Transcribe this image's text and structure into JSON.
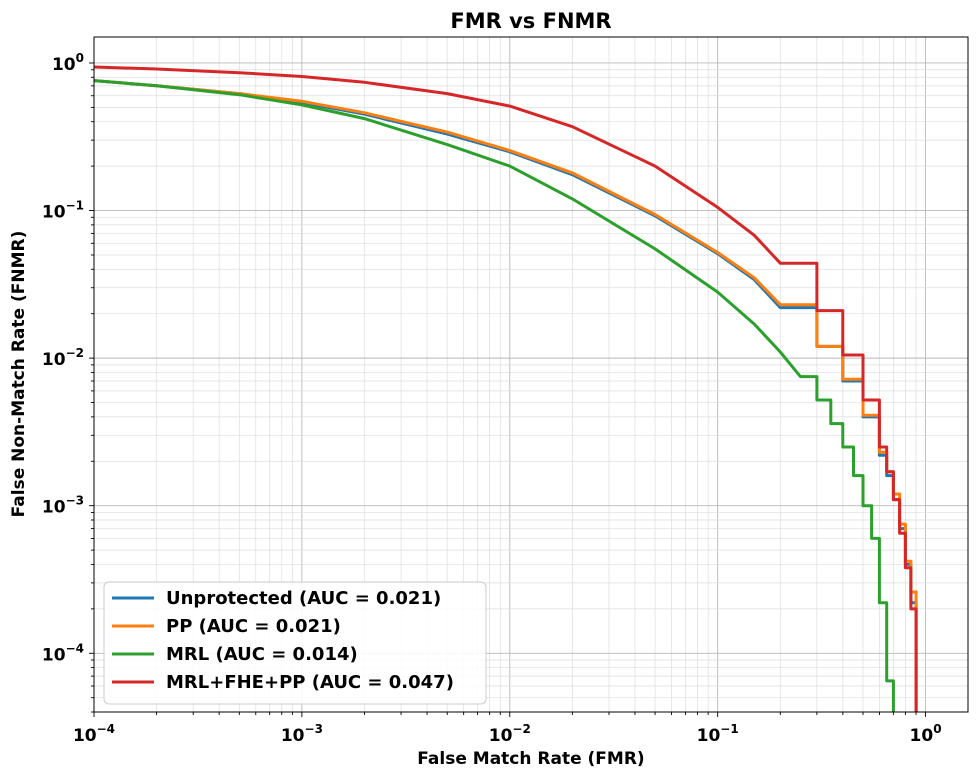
{
  "chart_data": {
    "type": "line",
    "title": "FMR vs FNMR",
    "xlabel": "False Match Rate (FMR)",
    "ylabel": "False Non-Match Rate (FNMR)",
    "xscale": "log",
    "yscale": "log",
    "xlim": [
      0.0001,
      1.6
    ],
    "ylim": [
      4e-05,
      1.5
    ],
    "grid": true,
    "legend_position": "lower-left",
    "x_ticks": [
      {
        "value": 0.0001,
        "base": "10",
        "exp": "−4"
      },
      {
        "value": 0.001,
        "base": "10",
        "exp": "−3"
      },
      {
        "value": 0.01,
        "base": "10",
        "exp": "−2"
      },
      {
        "value": 0.1,
        "base": "10",
        "exp": "−1"
      },
      {
        "value": 1,
        "base": "10",
        "exp": "0"
      }
    ],
    "y_ticks": [
      {
        "value": 0.0001,
        "base": "10",
        "exp": "−4"
      },
      {
        "value": 0.001,
        "base": "10",
        "exp": "−3"
      },
      {
        "value": 0.01,
        "base": "10",
        "exp": "−2"
      },
      {
        "value": 0.1,
        "base": "10",
        "exp": "−1"
      },
      {
        "value": 1,
        "base": "10",
        "exp": "0"
      }
    ],
    "series": [
      {
        "name": "Unprotected (AUC = 0.021)",
        "color": "#1f77b4",
        "x": [
          0.0001,
          0.0002,
          0.0005,
          0.001,
          0.002,
          0.005,
          0.01,
          0.02,
          0.05,
          0.1,
          0.15,
          0.2,
          0.3,
          0.4,
          0.5,
          0.6,
          0.65,
          0.7,
          0.75,
          0.8,
          0.85,
          0.9
        ],
        "y": [
          0.76,
          0.7,
          0.62,
          0.54,
          0.45,
          0.33,
          0.25,
          0.175,
          0.092,
          0.051,
          0.034,
          0.022,
          0.012,
          0.007,
          0.004,
          0.0022,
          0.0016,
          0.0011,
          0.0007,
          0.0004,
          0.00022,
          4e-05
        ]
      },
      {
        "name": "PP (AUC = 0.021)",
        "color": "#ff7f0e",
        "x": [
          0.0001,
          0.0002,
          0.0005,
          0.001,
          0.002,
          0.005,
          0.01,
          0.02,
          0.05,
          0.1,
          0.15,
          0.2,
          0.3,
          0.4,
          0.5,
          0.6,
          0.65,
          0.7,
          0.75,
          0.8,
          0.85,
          0.9
        ],
        "y": [
          0.76,
          0.7,
          0.62,
          0.55,
          0.46,
          0.34,
          0.255,
          0.18,
          0.094,
          0.052,
          0.035,
          0.023,
          0.012,
          0.0072,
          0.0041,
          0.0023,
          0.0017,
          0.0012,
          0.00075,
          0.00042,
          0.00026,
          4e-05
        ]
      },
      {
        "name": "MRL (AUC = 0.014)",
        "color": "#2ca02c",
        "x": [
          0.0001,
          0.0002,
          0.0005,
          0.001,
          0.002,
          0.005,
          0.01,
          0.02,
          0.05,
          0.1,
          0.15,
          0.2,
          0.25,
          0.3,
          0.35,
          0.4,
          0.45,
          0.5,
          0.55,
          0.6,
          0.65,
          0.7
        ],
        "y": [
          0.76,
          0.7,
          0.61,
          0.52,
          0.42,
          0.28,
          0.2,
          0.12,
          0.055,
          0.028,
          0.017,
          0.011,
          0.0075,
          0.0052,
          0.0036,
          0.0025,
          0.0016,
          0.001,
          0.0006,
          0.00022,
          6.5e-05,
          4e-05
        ]
      },
      {
        "name": "MRL+FHE+PP (AUC = 0.047)",
        "color": "#d62728",
        "x": [
          0.0001,
          0.0002,
          0.0005,
          0.001,
          0.002,
          0.005,
          0.01,
          0.02,
          0.05,
          0.1,
          0.15,
          0.2,
          0.3,
          0.4,
          0.5,
          0.6,
          0.65,
          0.7,
          0.75,
          0.8,
          0.85,
          0.9
        ],
        "y": [
          0.94,
          0.91,
          0.86,
          0.81,
          0.74,
          0.62,
          0.51,
          0.37,
          0.2,
          0.105,
          0.068,
          0.044,
          0.021,
          0.0105,
          0.0052,
          0.0025,
          0.0017,
          0.0011,
          0.00065,
          0.00038,
          0.0002,
          4e-05
        ]
      }
    ]
  }
}
